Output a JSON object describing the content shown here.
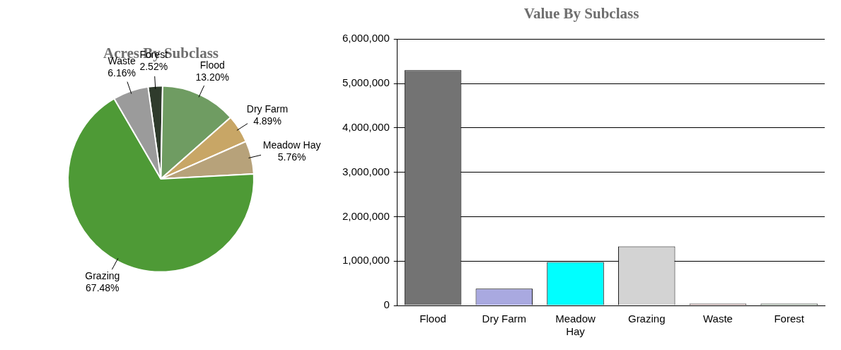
{
  "chart_data": [
    {
      "type": "pie",
      "title": "Acres By Subclass",
      "categories": [
        "Forest",
        "Flood",
        "Dry Farm",
        "Meadow Hay",
        "Grazing",
        "Waste"
      ],
      "values": [
        2.52,
        13.2,
        4.89,
        5.76,
        67.48,
        6.16
      ],
      "value_labels": [
        "2.52%",
        "13.20%",
        "4.89%",
        "5.76%",
        "67.48%",
        "6.16%"
      ],
      "colors": [
        "#2f3b2c",
        "#6f9c62",
        "#c8a666",
        "#b7a27a",
        "#4e9a36",
        "#9b9b9b"
      ],
      "data_labels": true
    },
    {
      "type": "bar",
      "title": "Value By Subclass",
      "categories": [
        "Flood",
        "Dry Farm",
        "Meadow Hay",
        "Grazing",
        "Waste",
        "Forest"
      ],
      "values": [
        5300000,
        380000,
        980000,
        1330000,
        40000,
        40000
      ],
      "colors": [
        "#737373",
        "#a9a9e0",
        "#00ffff",
        "#d3d3d3",
        "#f2c8c8",
        "#c8e0c8"
      ],
      "ylim": [
        0,
        6000000
      ],
      "yticks": [
        0,
        {
          "value": 1000000,
          "label": "1,000,000"
        },
        {
          "value": 2000000,
          "label": "2,000,000"
        },
        {
          "value": 3000000,
          "label": "3,000,000"
        },
        {
          "value": 4000000,
          "label": "4,000,000"
        },
        {
          "value": 5000000,
          "label": "5,000,000"
        },
        {
          "value": 6000000,
          "label": "6,000,000"
        }
      ],
      "grid": true
    }
  ]
}
